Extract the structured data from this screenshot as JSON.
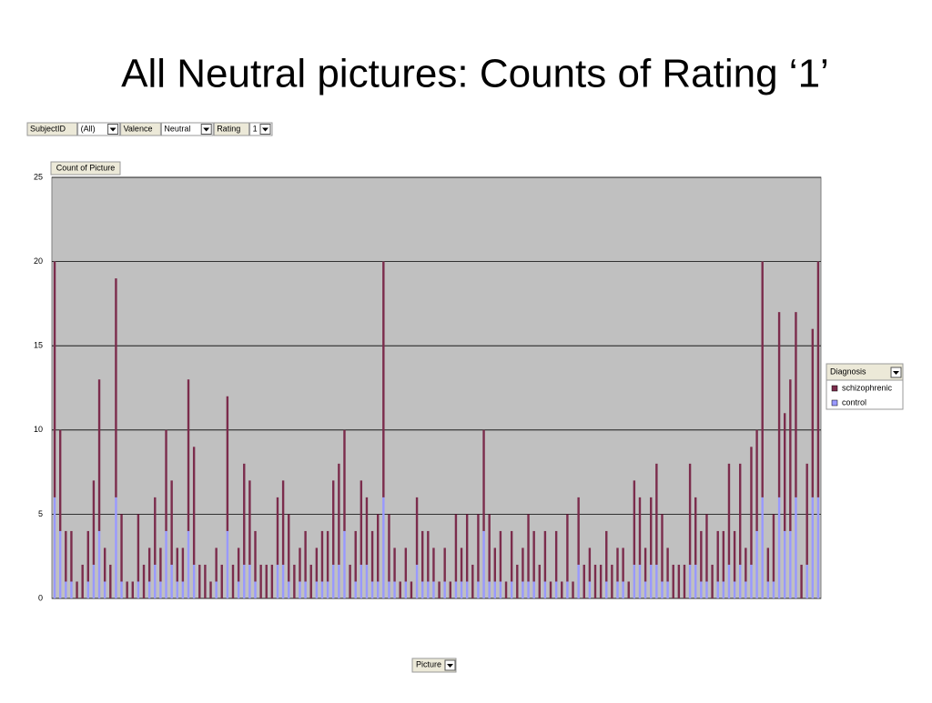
{
  "chart_data": {
    "type": "stacked_bar",
    "title": "All Neutral pictures: Counts of Rating ‘1’",
    "filters": [
      {
        "field": "SubjectID",
        "value": "(All)"
      },
      {
        "field": "Valence",
        "value": "Neutral"
      },
      {
        "field": "Rating",
        "value": "1"
      }
    ],
    "data_field": "Count of Picture",
    "category_field": "Picture",
    "legend_title": "Diagnosis",
    "categories": [
      null,
      null,
      null,
      null,
      null,
      null,
      null,
      null,
      null,
      null,
      null,
      null,
      null,
      null,
      null,
      null,
      null,
      null,
      null,
      null,
      null,
      null,
      null,
      null,
      null,
      null,
      null,
      null,
      null,
      null,
      null,
      null,
      null,
      null,
      null,
      null,
      null,
      null,
      null,
      null,
      null,
      null,
      null,
      null,
      null,
      null,
      null,
      null,
      null,
      null,
      null,
      null,
      null,
      null,
      null,
      null,
      null,
      null,
      null,
      null,
      null,
      null,
      null,
      null,
      null,
      null,
      null,
      null,
      null,
      null,
      null,
      null,
      null,
      null,
      null,
      null,
      null,
      null,
      null,
      null,
      null,
      null,
      null,
      null,
      null,
      null,
      null,
      null,
      null,
      null,
      null,
      null,
      null,
      null,
      null,
      null,
      null,
      null,
      null,
      null,
      null,
      null,
      null,
      null,
      null,
      null,
      null,
      null,
      null,
      null,
      null,
      null,
      null,
      null,
      null,
      null,
      null,
      null,
      null,
      null,
      null,
      null,
      null,
      null,
      null,
      null,
      null,
      null,
      null,
      null,
      null,
      null,
      null,
      null,
      null,
      null,
      null,
      null
    ],
    "series": [
      {
        "name": "control",
        "color": "#9999ff",
        "values": [
          6,
          4,
          1,
          1,
          0,
          0,
          1,
          2,
          4,
          1,
          0,
          6,
          1,
          0,
          0,
          1,
          0,
          1,
          2,
          1,
          4,
          2,
          1,
          1,
          4,
          2,
          0,
          0,
          0,
          1,
          0,
          4,
          0,
          1,
          2,
          2,
          1,
          0,
          0,
          0,
          2,
          2,
          1,
          0,
          1,
          1,
          0,
          1,
          1,
          1,
          2,
          2,
          4,
          0,
          1,
          2,
          2,
          1,
          1,
          6,
          1,
          1,
          0,
          1,
          0,
          2,
          1,
          1,
          1,
          0,
          1,
          0,
          1,
          1,
          1,
          0,
          1,
          4,
          1,
          1,
          1,
          0,
          1,
          0,
          1,
          1,
          1,
          0,
          1,
          0,
          1,
          0,
          1,
          0,
          2,
          0,
          1,
          0,
          0,
          1,
          0,
          1,
          1,
          0,
          2,
          2,
          1,
          2,
          2,
          1,
          1,
          0,
          0,
          0,
          2,
          2,
          1,
          1,
          0,
          1,
          1,
          2,
          1,
          2,
          1,
          2,
          4,
          6,
          1,
          1,
          6,
          4,
          4,
          6,
          0,
          2,
          6,
          6
        ]
      },
      {
        "name": "schizophrenic",
        "color": "#7b2c4c",
        "values": [
          14,
          6,
          3,
          3,
          1,
          2,
          3,
          5,
          9,
          2,
          2,
          13,
          4,
          1,
          1,
          4,
          2,
          2,
          4,
          2,
          6,
          5,
          2,
          2,
          9,
          7,
          2,
          2,
          1,
          2,
          2,
          8,
          2,
          2,
          6,
          5,
          3,
          2,
          2,
          2,
          4,
          5,
          4,
          2,
          2,
          3,
          2,
          2,
          3,
          3,
          5,
          6,
          6,
          2,
          3,
          5,
          4,
          3,
          4,
          14,
          4,
          2,
          1,
          2,
          1,
          4,
          3,
          3,
          2,
          1,
          2,
          1,
          4,
          2,
          4,
          2,
          4,
          6,
          4,
          2,
          3,
          1,
          3,
          2,
          2,
          4,
          3,
          2,
          3,
          1,
          3,
          1,
          4,
          1,
          4,
          2,
          2,
          2,
          2,
          3,
          2,
          2,
          2,
          1,
          5,
          4,
          2,
          4,
          6,
          4,
          2,
          2,
          2,
          2,
          6,
          4,
          3,
          4,
          2,
          3,
          3,
          6,
          3,
          6,
          2,
          7,
          6,
          14,
          2,
          4,
          11,
          7,
          9,
          11,
          2,
          6,
          10,
          14
        ]
      }
    ],
    "ylim": [
      0,
      25
    ],
    "yticks": [
      0,
      5,
      10,
      15,
      20,
      25
    ],
    "grid": true
  }
}
